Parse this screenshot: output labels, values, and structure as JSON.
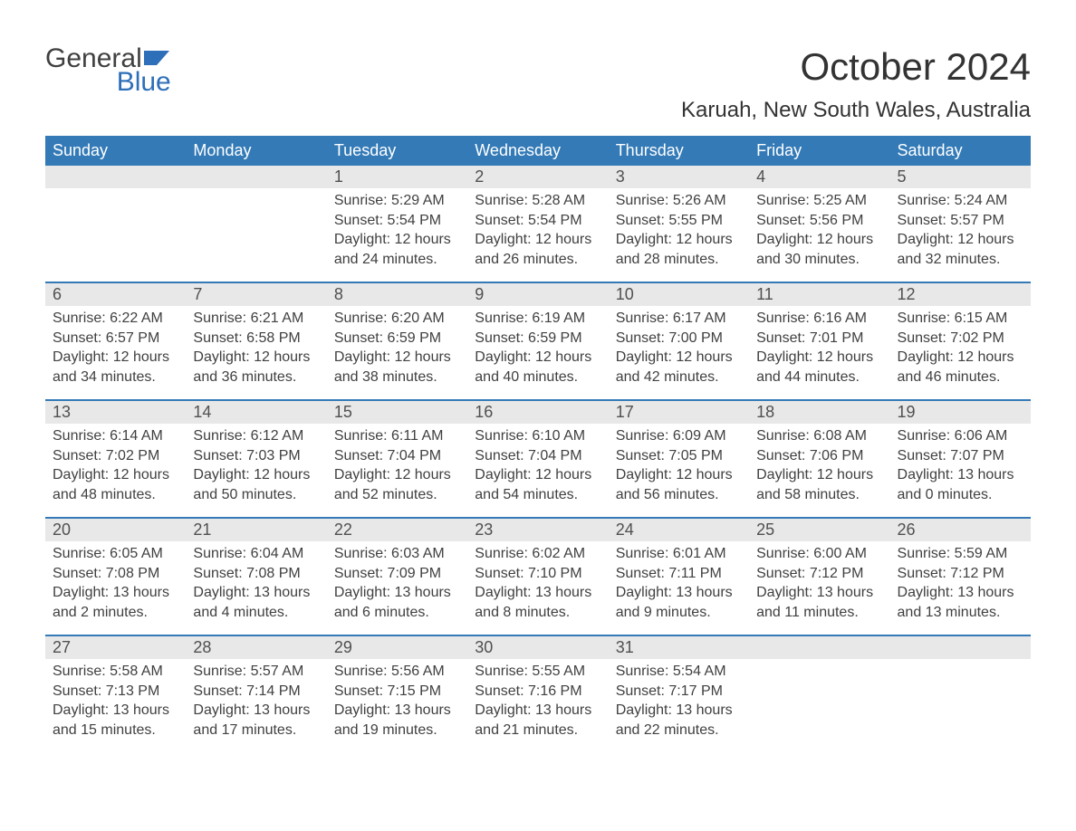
{
  "logo": {
    "word1": "General",
    "word2": "Blue"
  },
  "title": "October 2024",
  "location": "Karuah, New South Wales, Australia",
  "colors": {
    "header_bg": "#337ab7",
    "header_text": "#ffffff",
    "daynum_bg": "#e8e8e8",
    "text": "#404040",
    "logo_blue": "#2d6fb8",
    "week_divider": "#337ab7",
    "page_bg": "#ffffff"
  },
  "typography": {
    "title_fontsize": 42,
    "location_fontsize": 24,
    "dayheader_fontsize": 18,
    "daynum_fontsize": 18,
    "detail_fontsize": 16,
    "logo_fontsize": 30
  },
  "day_names": [
    "Sunday",
    "Monday",
    "Tuesday",
    "Wednesday",
    "Thursday",
    "Friday",
    "Saturday"
  ],
  "labels": {
    "sunrise": "Sunrise:",
    "sunset": "Sunset:",
    "daylight": "Daylight:"
  },
  "weeks": [
    [
      {
        "n": "",
        "empty": true
      },
      {
        "n": "",
        "empty": true
      },
      {
        "n": "1",
        "sunrise": "5:29 AM",
        "sunset": "5:54 PM",
        "daylight": "12 hours and 24 minutes."
      },
      {
        "n": "2",
        "sunrise": "5:28 AM",
        "sunset": "5:54 PM",
        "daylight": "12 hours and 26 minutes."
      },
      {
        "n": "3",
        "sunrise": "5:26 AM",
        "sunset": "5:55 PM",
        "daylight": "12 hours and 28 minutes."
      },
      {
        "n": "4",
        "sunrise": "5:25 AM",
        "sunset": "5:56 PM",
        "daylight": "12 hours and 30 minutes."
      },
      {
        "n": "5",
        "sunrise": "5:24 AM",
        "sunset": "5:57 PM",
        "daylight": "12 hours and 32 minutes."
      }
    ],
    [
      {
        "n": "6",
        "sunrise": "6:22 AM",
        "sunset": "6:57 PM",
        "daylight": "12 hours and 34 minutes."
      },
      {
        "n": "7",
        "sunrise": "6:21 AM",
        "sunset": "6:58 PM",
        "daylight": "12 hours and 36 minutes."
      },
      {
        "n": "8",
        "sunrise": "6:20 AM",
        "sunset": "6:59 PM",
        "daylight": "12 hours and 38 minutes."
      },
      {
        "n": "9",
        "sunrise": "6:19 AM",
        "sunset": "6:59 PM",
        "daylight": "12 hours and 40 minutes."
      },
      {
        "n": "10",
        "sunrise": "6:17 AM",
        "sunset": "7:00 PM",
        "daylight": "12 hours and 42 minutes."
      },
      {
        "n": "11",
        "sunrise": "6:16 AM",
        "sunset": "7:01 PM",
        "daylight": "12 hours and 44 minutes."
      },
      {
        "n": "12",
        "sunrise": "6:15 AM",
        "sunset": "7:02 PM",
        "daylight": "12 hours and 46 minutes."
      }
    ],
    [
      {
        "n": "13",
        "sunrise": "6:14 AM",
        "sunset": "7:02 PM",
        "daylight": "12 hours and 48 minutes."
      },
      {
        "n": "14",
        "sunrise": "6:12 AM",
        "sunset": "7:03 PM",
        "daylight": "12 hours and 50 minutes."
      },
      {
        "n": "15",
        "sunrise": "6:11 AM",
        "sunset": "7:04 PM",
        "daylight": "12 hours and 52 minutes."
      },
      {
        "n": "16",
        "sunrise": "6:10 AM",
        "sunset": "7:04 PM",
        "daylight": "12 hours and 54 minutes."
      },
      {
        "n": "17",
        "sunrise": "6:09 AM",
        "sunset": "7:05 PM",
        "daylight": "12 hours and 56 minutes."
      },
      {
        "n": "18",
        "sunrise": "6:08 AM",
        "sunset": "7:06 PM",
        "daylight": "12 hours and 58 minutes."
      },
      {
        "n": "19",
        "sunrise": "6:06 AM",
        "sunset": "7:07 PM",
        "daylight": "13 hours and 0 minutes."
      }
    ],
    [
      {
        "n": "20",
        "sunrise": "6:05 AM",
        "sunset": "7:08 PM",
        "daylight": "13 hours and 2 minutes."
      },
      {
        "n": "21",
        "sunrise": "6:04 AM",
        "sunset": "7:08 PM",
        "daylight": "13 hours and 4 minutes."
      },
      {
        "n": "22",
        "sunrise": "6:03 AM",
        "sunset": "7:09 PM",
        "daylight": "13 hours and 6 minutes."
      },
      {
        "n": "23",
        "sunrise": "6:02 AM",
        "sunset": "7:10 PM",
        "daylight": "13 hours and 8 minutes."
      },
      {
        "n": "24",
        "sunrise": "6:01 AM",
        "sunset": "7:11 PM",
        "daylight": "13 hours and 9 minutes."
      },
      {
        "n": "25",
        "sunrise": "6:00 AM",
        "sunset": "7:12 PM",
        "daylight": "13 hours and 11 minutes."
      },
      {
        "n": "26",
        "sunrise": "5:59 AM",
        "sunset": "7:12 PM",
        "daylight": "13 hours and 13 minutes."
      }
    ],
    [
      {
        "n": "27",
        "sunrise": "5:58 AM",
        "sunset": "7:13 PM",
        "daylight": "13 hours and 15 minutes."
      },
      {
        "n": "28",
        "sunrise": "5:57 AM",
        "sunset": "7:14 PM",
        "daylight": "13 hours and 17 minutes."
      },
      {
        "n": "29",
        "sunrise": "5:56 AM",
        "sunset": "7:15 PM",
        "daylight": "13 hours and 19 minutes."
      },
      {
        "n": "30",
        "sunrise": "5:55 AM",
        "sunset": "7:16 PM",
        "daylight": "13 hours and 21 minutes."
      },
      {
        "n": "31",
        "sunrise": "5:54 AM",
        "sunset": "7:17 PM",
        "daylight": "13 hours and 22 minutes."
      },
      {
        "n": "",
        "empty": true
      },
      {
        "n": "",
        "empty": true
      }
    ]
  ]
}
